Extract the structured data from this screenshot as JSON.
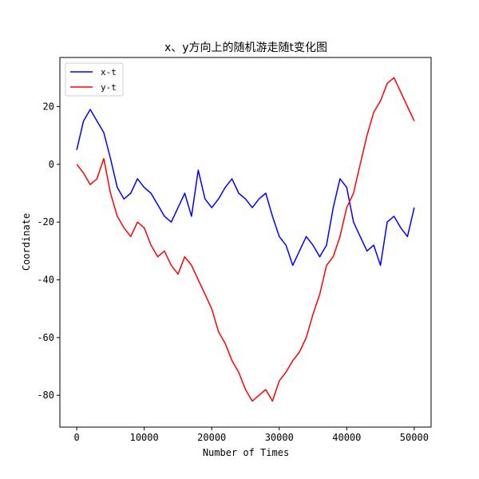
{
  "chart_data": {
    "type": "line",
    "title": "x、y方向上的随机游走随t变化图",
    "xlabel": "Number of Times",
    "ylabel": "Coordinate",
    "xlim": [
      -2500,
      52500
    ],
    "ylim": [
      -91,
      37
    ],
    "xticks": [
      0,
      10000,
      20000,
      30000,
      40000,
      50000
    ],
    "yticks": [
      -80,
      -60,
      -40,
      -20,
      0,
      20
    ],
    "grid": false,
    "legend": {
      "position": "top-left"
    },
    "series": [
      {
        "name": "x-t",
        "color": "#0000ff",
        "x": [
          0,
          1000,
          2000,
          3000,
          4000,
          5000,
          6000,
          7000,
          8000,
          9000,
          10000,
          11000,
          12000,
          13000,
          14000,
          15000,
          16000,
          17000,
          18000,
          19000,
          20000,
          21000,
          22000,
          23000,
          24000,
          25000,
          26000,
          27000,
          28000,
          29000,
          30000,
          31000,
          32000,
          33000,
          34000,
          35000,
          36000,
          37000,
          38000,
          39000,
          40000,
          41000,
          42000,
          43000,
          44000,
          45000,
          46000,
          47000,
          48000,
          49000,
          50000
        ],
        "y": [
          5,
          15,
          19,
          15,
          11,
          2,
          -8,
          -12,
          -10,
          -5,
          -8,
          -10,
          -14,
          -18,
          -20,
          -15,
          -10,
          -18,
          -2,
          -12,
          -15,
          -12,
          -8,
          -5,
          -10,
          -12,
          -15,
          -12,
          -10,
          -18,
          -25,
          -28,
          -35,
          -30,
          -25,
          -28,
          -32,
          -28,
          -15,
          -5,
          -8,
          -20,
          -25,
          -30,
          -28,
          -35,
          -20,
          -18,
          -22,
          -25,
          -15
        ]
      },
      {
        "name": "y-t",
        "color": "#ff0000",
        "x": [
          0,
          1000,
          2000,
          3000,
          4000,
          5000,
          6000,
          7000,
          8000,
          9000,
          10000,
          11000,
          12000,
          13000,
          14000,
          15000,
          16000,
          17000,
          18000,
          19000,
          20000,
          21000,
          22000,
          23000,
          24000,
          25000,
          26000,
          27000,
          28000,
          29000,
          30000,
          31000,
          32000,
          33000,
          34000,
          35000,
          36000,
          37000,
          38000,
          39000,
          40000,
          41000,
          42000,
          43000,
          44000,
          45000,
          46000,
          47000,
          48000,
          49000,
          50000
        ],
        "y": [
          0,
          -3,
          -7,
          -5,
          2,
          -10,
          -18,
          -22,
          -25,
          -20,
          -22,
          -28,
          -32,
          -30,
          -35,
          -38,
          -32,
          -35,
          -40,
          -45,
          -50,
          -58,
          -62,
          -68,
          -72,
          -78,
          -82,
          -80,
          -78,
          -82,
          -75,
          -72,
          -68,
          -65,
          -60,
          -52,
          -45,
          -35,
          -32,
          -25,
          -15,
          -10,
          0,
          10,
          18,
          22,
          28,
          30,
          25,
          20,
          15
        ]
      }
    ]
  }
}
